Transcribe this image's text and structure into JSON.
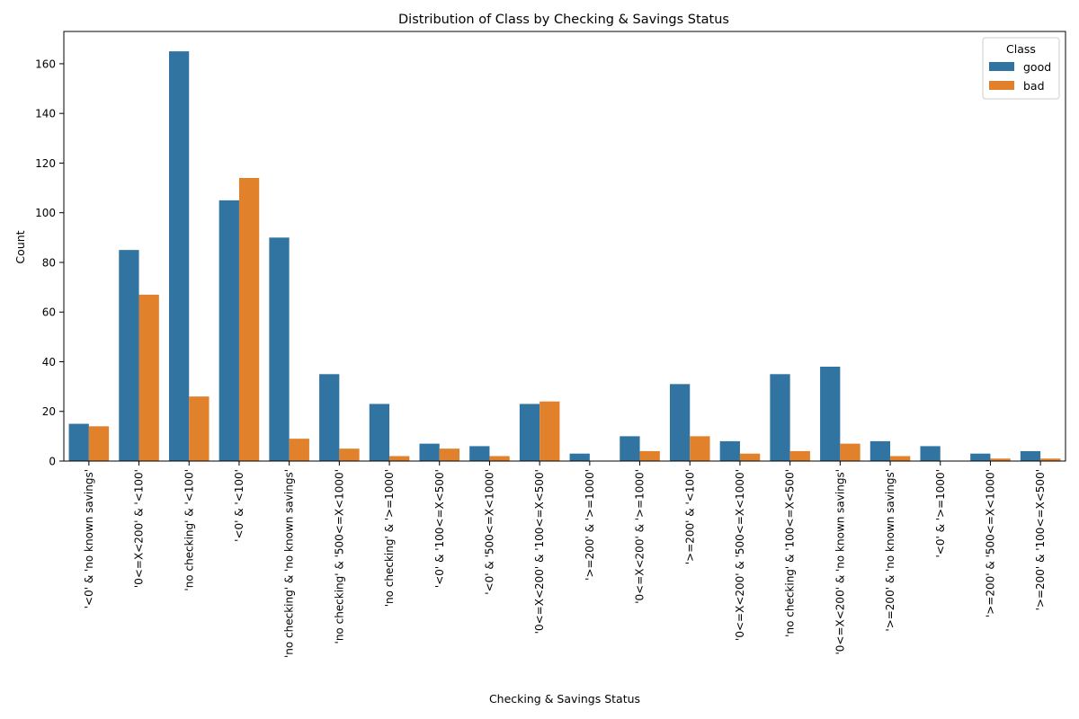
{
  "chart_data": {
    "type": "bar",
    "title": "Distribution of Class by Checking & Savings Status",
    "xlabel": "Checking & Savings Status",
    "ylabel": "Count",
    "ylim": [
      0,
      173
    ],
    "yticks": [
      0,
      20,
      40,
      60,
      80,
      100,
      120,
      140,
      160
    ],
    "legend": {
      "title": "Class",
      "position": "top-right"
    },
    "grid": false,
    "categories": [
      "'<0' & 'no known savings'",
      "'0<=X<200' & '<100'",
      "'no checking' & '<100'",
      "'<0' & '<100'",
      "'no checking' & 'no known savings'",
      "'no checking' & '500<=X<1000'",
      "'no checking' & '>=1000'",
      "'<0' & '100<=X<500'",
      "'<0' & '500<=X<1000'",
      "'0<=X<200' & '100<=X<500'",
      "'>=200' & '>=1000'",
      "'0<=X<200' & '>=1000'",
      "'>=200' & '<100'",
      "'0<=X<200' & '500<=X<1000'",
      "'no checking' & '100<=X<500'",
      "'0<=X<200' & 'no known savings'",
      "'>=200' & 'no known savings'",
      "'<0' & '>=1000'",
      "'>=200' & '500<=X<1000'",
      "'>=200' & '100<=X<500'"
    ],
    "series": [
      {
        "name": "good",
        "color": "#3274a1",
        "values": [
          15,
          85,
          165,
          105,
          90,
          35,
          23,
          7,
          6,
          23,
          3,
          10,
          31,
          8,
          35,
          38,
          8,
          6,
          3,
          4
        ]
      },
      {
        "name": "bad",
        "color": "#e1812c",
        "values": [
          14,
          67,
          26,
          114,
          9,
          5,
          2,
          5,
          2,
          24,
          0,
          4,
          10,
          3,
          4,
          7,
          2,
          0,
          1,
          1
        ]
      }
    ]
  }
}
